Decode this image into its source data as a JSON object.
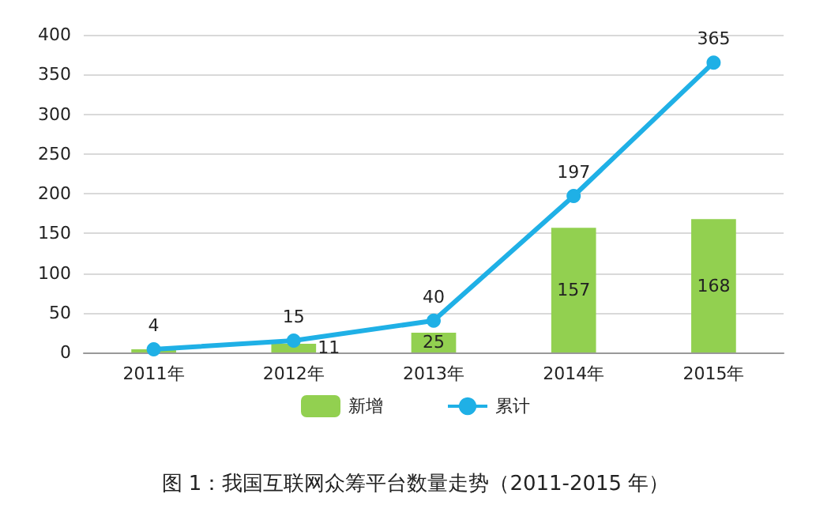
{
  "chart_data": {
    "type": "bar",
    "categories": [
      "2011年",
      "2012年",
      "2013年",
      "2014年",
      "2015年"
    ],
    "series": [
      {
        "name": "新增",
        "color": "#92d050",
        "values": [
          4,
          11,
          25,
          157,
          168
        ],
        "value_labels": [
          null,
          "11",
          "25",
          "157",
          "168"
        ]
      },
      {
        "name": "累计",
        "type": "line",
        "color": "#1fb0e6",
        "values": [
          4,
          15,
          40,
          197,
          365
        ],
        "data_labels": true,
        "marker": "circle"
      }
    ],
    "ylim": [
      0,
      400
    ],
    "yticks": [
      0,
      50,
      100,
      150,
      200,
      250,
      300,
      350,
      400
    ],
    "grid": "y",
    "legend": "bottom",
    "annotations": [
      "图 1：我国互联网众筹平台数量走势（2011-2015 年）"
    ]
  }
}
